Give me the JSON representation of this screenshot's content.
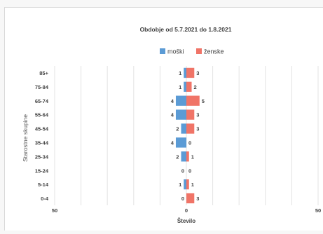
{
  "chart_data": {
    "type": "bar",
    "title": "Obdobje od 5.7.2021 do 1.8.2021",
    "xlabel": "Število",
    "ylabel": "Starostne skupine",
    "categories": [
      "85+",
      "75-84",
      "65-74",
      "55-64",
      "45-54",
      "35-44",
      "25-34",
      "15-24",
      "5-14",
      "0-4"
    ],
    "series": [
      {
        "name": "moški",
        "values": [
          1,
          1,
          4,
          4,
          2,
          4,
          2,
          0,
          1,
          0
        ],
        "color": "#5b9bd5"
      },
      {
        "name": "ženske",
        "values": [
          3,
          2,
          5,
          3,
          3,
          0,
          1,
          0,
          1,
          3
        ],
        "color": "#f07467"
      }
    ],
    "xlim": [
      -50,
      50
    ],
    "x_ticks": [
      "50",
      "0",
      "50"
    ],
    "legend_position": "top-center",
    "grid": true
  }
}
